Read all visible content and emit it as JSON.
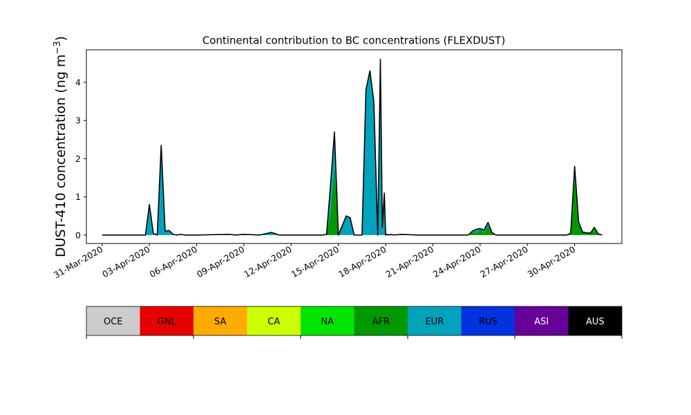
{
  "chart_data": {
    "type": "area",
    "title": "Continental contribution to BC concentrations (FLEXDUST)",
    "ylabel": "DUST-410 concentration (ng m",
    "ylabel_sup": "−3",
    "ylabel_close": ")",
    "xlabel": "",
    "x_range": [
      "2020-03-30",
      "2020-05-03"
    ],
    "ylim": [
      -0.22,
      4.85
    ],
    "y_ticks": [
      0,
      1,
      2,
      3,
      4
    ],
    "x_ticks": [
      {
        "date": "2020-03-31",
        "label": "31-Mar-2020"
      },
      {
        "date": "2020-04-03",
        "label": "03-Apr-2020"
      },
      {
        "date": "2020-04-06",
        "label": "06-Apr-2020"
      },
      {
        "date": "2020-04-09",
        "label": "09-Apr-2020"
      },
      {
        "date": "2020-04-12",
        "label": "12-Apr-2020"
      },
      {
        "date": "2020-04-15",
        "label": "15-Apr-2020"
      },
      {
        "date": "2020-04-18",
        "label": "18-Apr-2020"
      },
      {
        "date": "2020-04-21",
        "label": "21-Apr-2020"
      },
      {
        "date": "2020-04-24",
        "label": "24-Apr-2020"
      },
      {
        "date": "2020-04-27",
        "label": "27-Apr-2020"
      },
      {
        "date": "2020-04-30",
        "label": "30-Apr-2020"
      }
    ],
    "grid": false,
    "stacked": true,
    "legend_placement": "bottom",
    "legend": [
      {
        "name": "OCE",
        "color": "#cccccc",
        "text_color": "#000000"
      },
      {
        "name": "GNL",
        "color": "#e60000",
        "text_color": "#000000"
      },
      {
        "name": "SA",
        "color": "#ffaa00",
        "text_color": "#000000"
      },
      {
        "name": "CA",
        "color": "#ccff00",
        "text_color": "#000000"
      },
      {
        "name": "NA",
        "color": "#00e600",
        "text_color": "#000000"
      },
      {
        "name": "AFR",
        "color": "#009900",
        "text_color": "#000000"
      },
      {
        "name": "EUR",
        "color": "#00a3bb",
        "text_color": "#000000"
      },
      {
        "name": "RUS",
        "color": "#0033dd",
        "text_color": "#000000"
      },
      {
        "name": "ASI",
        "color": "#660099",
        "text_color": "#ffffff"
      },
      {
        "name": "AUS",
        "color": "#000000",
        "text_color": "#ffffff"
      }
    ],
    "x": [
      "2020-03-31T00:00",
      "2020-04-02T00:00",
      "2020-04-02T12:00",
      "2020-04-02T18:00",
      "2020-04-03T00:00",
      "2020-04-03T06:00",
      "2020-04-03T12:00",
      "2020-04-03T18:00",
      "2020-04-04T00:00",
      "2020-04-04T06:00",
      "2020-04-04T12:00",
      "2020-04-04T18:00",
      "2020-04-05T00:00",
      "2020-04-05T06:00",
      "2020-04-06T00:00",
      "2020-04-08T00:00",
      "2020-04-08T12:00",
      "2020-04-09T00:00",
      "2020-04-10T00:00",
      "2020-04-10T18:00",
      "2020-04-11T06:00",
      "2020-04-11T12:00",
      "2020-04-12T12:00",
      "2020-04-13T18:00",
      "2020-04-14T00:00",
      "2020-04-14T06:00",
      "2020-04-14T12:00",
      "2020-04-14T18:00",
      "2020-04-15T00:00",
      "2020-04-15T12:00",
      "2020-04-15T18:00",
      "2020-04-16T00:00",
      "2020-04-16T06:00",
      "2020-04-16T12:00",
      "2020-04-16T18:00",
      "2020-04-17T00:00",
      "2020-04-17T06:00",
      "2020-04-17T12:00",
      "2020-04-17T16:00",
      "2020-04-17T19:00",
      "2020-04-17T22:00",
      "2020-04-18T00:00",
      "2020-04-18T02:00",
      "2020-04-18T05:00",
      "2020-04-18T08:00",
      "2020-04-18T12:00",
      "2020-04-19T00:00",
      "2020-04-20T00:00",
      "2020-04-23T00:00",
      "2020-04-23T06:00",
      "2020-04-23T12:00",
      "2020-04-23T18:00",
      "2020-04-24T00:00",
      "2020-04-24T06:00",
      "2020-04-24T12:00",
      "2020-04-24T18:00",
      "2020-04-25T00:00",
      "2020-04-29T00:00",
      "2020-04-29T12:00",
      "2020-04-29T18:00",
      "2020-04-30T00:00",
      "2020-04-30T06:00",
      "2020-04-30T12:00",
      "2020-04-30T18:00",
      "2020-05-01T00:00",
      "2020-05-01T06:00",
      "2020-05-01T12:00",
      "2020-05-01T18:00"
    ],
    "series": [
      {
        "name": "AFR",
        "values": [
          0,
          0,
          0,
          0,
          0,
          0,
          0,
          0,
          0,
          0,
          0,
          0,
          0,
          0,
          0,
          0,
          0,
          0,
          0,
          0,
          0,
          0,
          0,
          0,
          0,
          0,
          0.6,
          1.8,
          0,
          0,
          0,
          0,
          0,
          0,
          0,
          0,
          0,
          0,
          0,
          0,
          0,
          0,
          0,
          0,
          0,
          0,
          0,
          0,
          0,
          0,
          0.08,
          0.05,
          0.15,
          0.05,
          0.25,
          0.05,
          0,
          0,
          0,
          0.05,
          1.5,
          0.3,
          0.08,
          0.06,
          0.05,
          0.15,
          0.03,
          0
        ]
      },
      {
        "name": "EUR",
        "values": [
          0,
          0,
          0,
          0,
          0.8,
          0.05,
          0,
          2.35,
          0.1,
          0.12,
          0.02,
          0,
          0.02,
          0,
          0,
          0.02,
          0,
          0.02,
          0,
          0.07,
          0,
          0,
          0,
          0,
          0,
          0.02,
          0.7,
          0.85,
          0,
          0.5,
          0.45,
          0,
          0,
          0,
          3.8,
          4.3,
          3.5,
          0,
          4.6,
          0.2,
          1.1,
          0,
          0.02,
          0,
          0.02,
          0,
          0.02,
          0,
          0,
          0,
          0.02,
          0.1,
          0.02,
          0.08,
          0.08,
          0.02,
          0,
          0,
          0,
          0,
          0.3,
          0.05,
          0,
          0,
          0,
          0.05,
          0,
          0
        ]
      },
      {
        "name": "CA",
        "values": [
          0,
          0,
          0,
          0,
          0,
          0,
          0,
          0,
          0,
          0,
          0,
          0,
          0,
          0,
          0,
          0,
          0,
          0,
          0,
          0,
          0,
          0,
          0,
          0,
          0,
          0,
          0,
          0.05,
          0,
          0,
          0,
          0,
          0,
          0,
          0,
          0,
          0,
          0,
          0,
          0,
          0,
          0,
          0,
          0,
          0,
          0,
          0,
          0,
          0,
          0,
          0,
          0,
          0,
          0,
          0,
          0,
          0,
          0,
          0,
          0,
          0,
          0,
          0,
          0,
          0,
          0,
          0,
          0
        ]
      }
    ]
  }
}
